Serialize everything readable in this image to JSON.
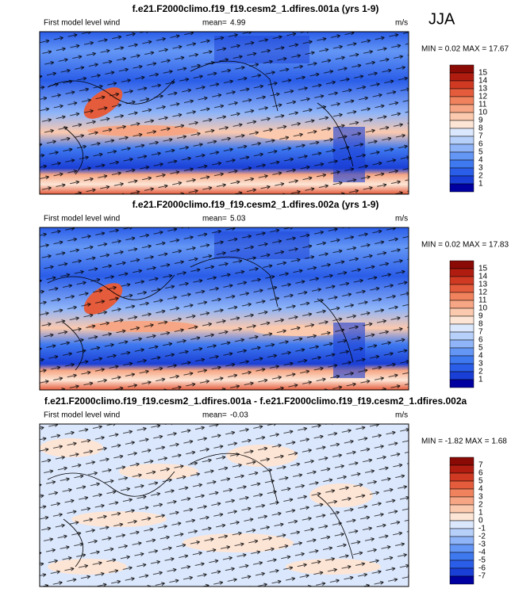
{
  "season": "JJA",
  "panels": [
    {
      "title": "f.e21.F2000climo.f19_f19.cesm2_1.dfires.001a (yrs 1-9)",
      "subtitle": "First model level wind",
      "mean_label": "mean=",
      "mean": "4.99",
      "units": "m/s",
      "minmax": "MIN =  0.02 MAX = 17.67",
      "colorbar": {
        "labels": [
          "15",
          "14",
          "13",
          "12",
          "11",
          "10",
          "9",
          "8",
          "7",
          "6",
          "5",
          "4",
          "3",
          "2",
          "1"
        ],
        "colors": [
          "#8a0a05",
          "#b01d10",
          "#d03a22",
          "#e45c3c",
          "#f0835e",
          "#f6a684",
          "#fbc9ae",
          "#fde5d6",
          "#dbe7fc",
          "#b7d0fa",
          "#8fb4f8",
          "#6496f5",
          "#3f79f0",
          "#2a5de8",
          "#1a3fd6",
          "#0000a0"
        ]
      }
    },
    {
      "title": "f.e21.F2000climo.f19_f19.cesm2_1.dfires.002a (yrs 1-9)",
      "subtitle": "First model level wind",
      "mean_label": "mean=",
      "mean": "5.03",
      "units": "m/s",
      "minmax": "MIN =  0.02 MAX = 17.83",
      "colorbar": {
        "labels": [
          "15",
          "14",
          "13",
          "12",
          "11",
          "10",
          "9",
          "8",
          "7",
          "6",
          "5",
          "4",
          "3",
          "2",
          "1"
        ],
        "colors": [
          "#8a0a05",
          "#b01d10",
          "#d03a22",
          "#e45c3c",
          "#f0835e",
          "#f6a684",
          "#fbc9ae",
          "#fde5d6",
          "#dbe7fc",
          "#b7d0fa",
          "#8fb4f8",
          "#6496f5",
          "#3f79f0",
          "#2a5de8",
          "#1a3fd6",
          "#0000a0"
        ]
      }
    },
    {
      "title": "f.e21.F2000climo.f19_f19.cesm2_1.dfires.001a - f.e21.F2000climo.f19_f19.cesm2_1.dfires.002a",
      "subtitle": "First model level wind",
      "mean_label": "mean=",
      "mean": "-0.03",
      "units": "m/s",
      "minmax": "MIN = -1.82 MAX =  1.68",
      "colorbar": {
        "labels": [
          "7",
          "6",
          "5",
          "4",
          "3",
          "2",
          "1",
          "0",
          "-1",
          "-2",
          "-3",
          "-4",
          "-5",
          "-6",
          "-7"
        ],
        "colors": [
          "#8a0a05",
          "#b01d10",
          "#d03a22",
          "#e45c3c",
          "#f0835e",
          "#f6a684",
          "#fbc9ae",
          "#fde5d6",
          "#dbe7fc",
          "#b7d0fa",
          "#8fb4f8",
          "#6496f5",
          "#3f79f0",
          "#2a5de8",
          "#1a3fd6",
          "#0000a0"
        ]
      }
    }
  ]
}
